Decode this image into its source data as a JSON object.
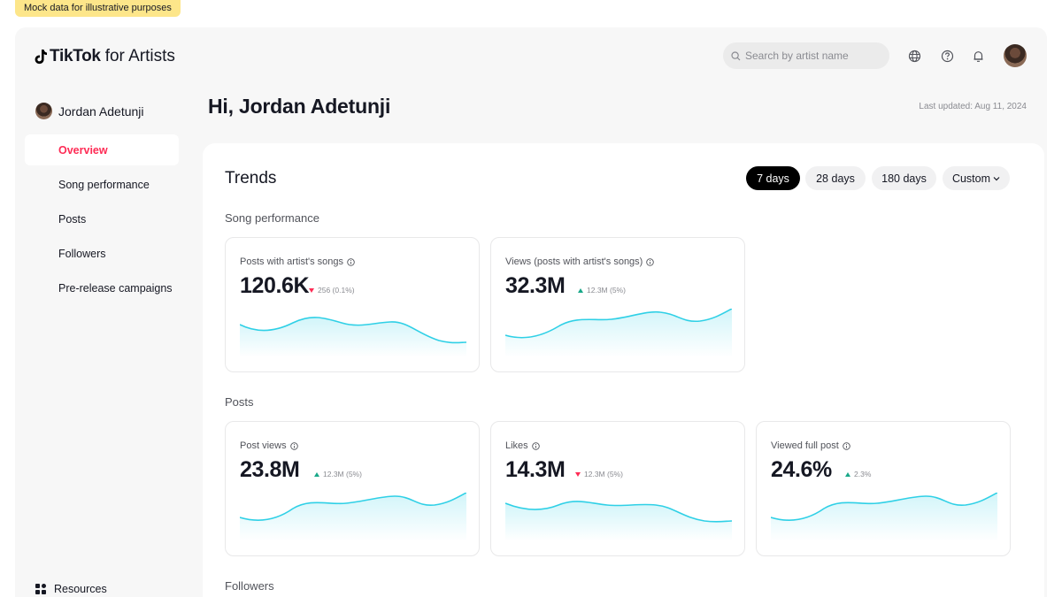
{
  "mock_tag": "Mock data for illustrative purposes",
  "header": {
    "brand": "TikTok",
    "brand_suffix": "for Artists",
    "search_placeholder": "Search by artist name",
    "icons": [
      "globe-icon",
      "help-icon",
      "bell-icon"
    ]
  },
  "sidebar": {
    "user_name": "Jordan Adetunji",
    "items": [
      {
        "label": "Overview",
        "active": true
      },
      {
        "label": "Song performance",
        "active": false
      },
      {
        "label": "Posts",
        "active": false
      },
      {
        "label": "Followers",
        "active": false
      },
      {
        "label": "Pre-release campaigns",
        "active": false
      }
    ],
    "resources": "Resources"
  },
  "main": {
    "greeting": "Hi, Jordan Adetunji",
    "last_updated": "Last updated: Aug 11, 2024",
    "trends_title": "Trends",
    "ranges": [
      "7 days",
      "28 days",
      "180 days",
      "Custom"
    ],
    "active_range": "7 days",
    "sections": {
      "song_performance": "Song performance",
      "posts": "Posts",
      "followers": "Followers"
    },
    "cards": [
      {
        "title": "Posts with artist's songs",
        "value": "120.6K",
        "delta": "256 (0.1%)",
        "direction": "down"
      },
      {
        "title": "Views (posts with artist's songs)",
        "value": "32.3M",
        "delta": "12.3M (5%)",
        "direction": "up"
      },
      {
        "title": "Post views",
        "value": "23.8M",
        "delta": "12.3M (5%)",
        "direction": "up"
      },
      {
        "title": "Likes",
        "value": "14.3M",
        "delta": "12.3M (5%)",
        "direction": "down"
      },
      {
        "title": "Viewed full post",
        "value": "24.6%",
        "delta": "2.3%",
        "direction": "up"
      }
    ]
  },
  "colors": {
    "accent": "#fe2c55",
    "spark_line": "#2fd0e6",
    "up": "#19a889",
    "down": "#fe2c55"
  }
}
